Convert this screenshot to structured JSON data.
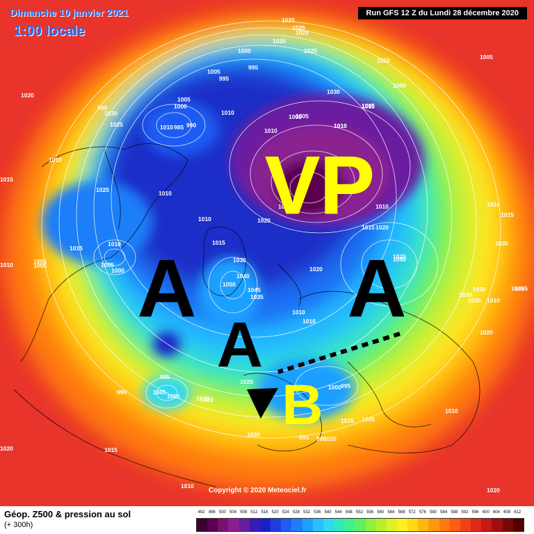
{
  "header": {
    "date": "Dimanche 10 janvier 2021",
    "time": "1:00 locale",
    "run": "Run GFS 12 Z du Lundi 28 décembre 2020"
  },
  "annotations": {
    "vortex": "VP",
    "high_1": "A",
    "high_2": "A",
    "high_3": "A",
    "low": "B"
  },
  "isobars": [
    "1025",
    "1025",
    "1025",
    "1020",
    "1025",
    "1000",
    "995",
    "995",
    "1005",
    "1010",
    "1005",
    "1000",
    "1010",
    "985",
    "990",
    "995",
    "1030",
    "1025",
    "1020",
    "1015",
    "1010",
    "1025",
    "1010",
    "1010",
    "1005",
    "1015",
    "1005",
    "1010",
    "1005",
    "1000",
    "1010",
    "1015",
    "1030",
    "1040",
    "1035",
    "1050",
    "1045",
    "1020",
    "1030",
    "1010",
    "1000",
    "1005",
    "1010",
    "1010",
    "1015",
    "1020",
    "1025",
    "1030",
    "1035",
    "1050",
    "1020",
    "1010",
    "1005",
    "1010",
    "1015",
    "1035",
    "1030",
    "1035",
    "1010",
    "1025",
    "1020",
    "1010",
    "1015",
    "1020",
    "1025",
    "1030",
    "1010",
    "995",
    "980",
    "985",
    "1005",
    "1005",
    "1010",
    "1020",
    "990",
    "1000",
    "995",
    "1005",
    "1010",
    "1015",
    "1020",
    "1020",
    "1010",
    "1005",
    "1005",
    "1010",
    "1010",
    "1010"
  ],
  "copyright": "Copyright © 2020 Meteociel.fr",
  "legend": {
    "title": "Géop. Z500 & pression au sol",
    "subtitle": "(+ 300h)",
    "scale_values": [
      "492",
      "496",
      "500",
      "504",
      "508",
      "512",
      "516",
      "520",
      "524",
      "528",
      "532",
      "536",
      "540",
      "544",
      "548",
      "552",
      "556",
      "560",
      "564",
      "568",
      "572",
      "576",
      "580",
      "584",
      "588",
      "592",
      "596",
      "600",
      "604",
      "608",
      "612"
    ],
    "scale_colors": [
      "#3a0030",
      "#5a0050",
      "#7a1070",
      "#8a2090",
      "#6a1ca0",
      "#3a1ab8",
      "#1a20c8",
      "#1e3ee0",
      "#1e5cf2",
      "#1e7ef8",
      "#1ea0ff",
      "#2ac0ff",
      "#30d8f0",
      "#30e8c0",
      "#40f090",
      "#60f060",
      "#90f040",
      "#b8f030",
      "#e0f020",
      "#fff020",
      "#ffd818",
      "#ffb810",
      "#ff9810",
      "#ff7a10",
      "#ff5c10",
      "#f04018",
      "#e02818",
      "#c81818",
      "#a00e0e",
      "#780808",
      "#500000"
    ]
  }
}
